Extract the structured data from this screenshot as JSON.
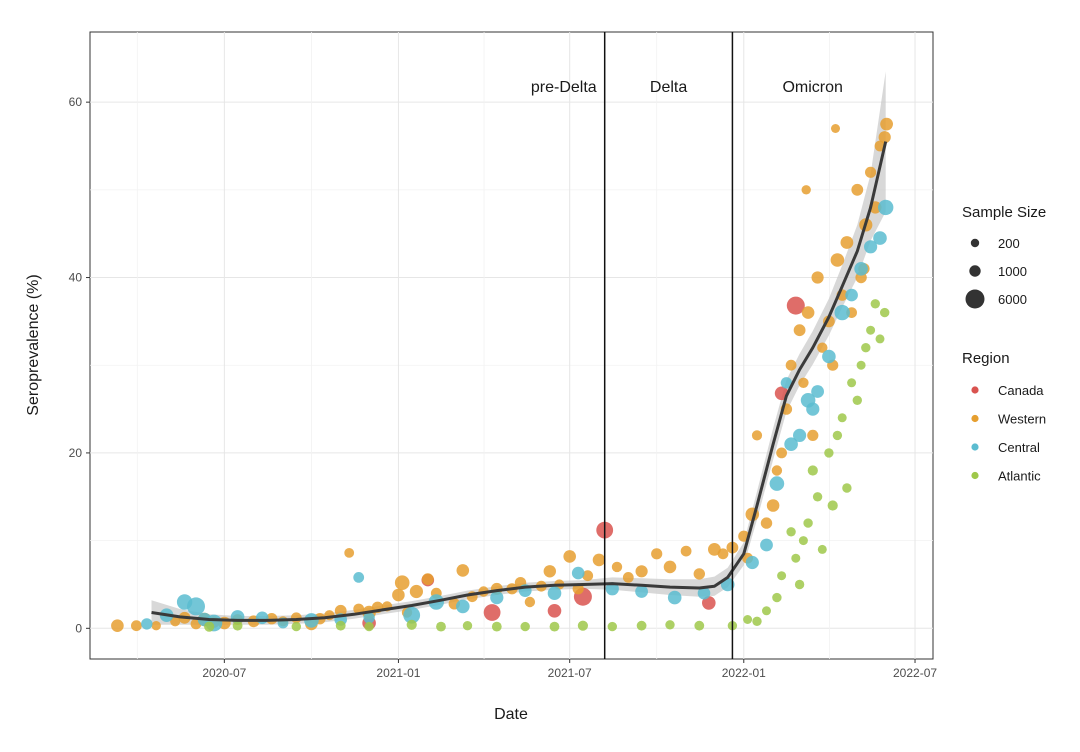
{
  "chart_data": {
    "type": "scatter",
    "xlabel": "Date",
    "ylabel": "Seroprevalence (%)",
    "xlim": [
      "2020-02-10",
      "2022-07-20"
    ],
    "ylim": [
      -3.5,
      68
    ],
    "x_ticks": [
      {
        "date": "2020-07-01",
        "label": "2020-07"
      },
      {
        "date": "2021-01-01",
        "label": "2021-01"
      },
      {
        "date": "2021-07-01",
        "label": "2021-07"
      },
      {
        "date": "2022-01-01",
        "label": "2022-01"
      },
      {
        "date": "2022-07-01",
        "label": "2022-07"
      }
    ],
    "y_ticks": [
      0,
      20,
      40,
      60
    ],
    "grid": true,
    "periods": [
      {
        "label": "pre-Delta",
        "start": "2020-02-10",
        "end": "2021-08-07"
      },
      {
        "label": "Delta",
        "start": "2021-08-07",
        "end": "2021-12-20"
      },
      {
        "label": "Omicron",
        "start": "2021-12-20",
        "end": "2022-07-20"
      }
    ],
    "period_boundaries": [
      "2021-08-07",
      "2021-12-20"
    ],
    "size_legend": {
      "title": "Sample Size",
      "entries": [
        {
          "label": "200",
          "value": 200
        },
        {
          "label": "1000",
          "value": 1000
        },
        {
          "label": "6000",
          "value": 6000
        }
      ]
    },
    "color_legend": {
      "title": "Region",
      "entries": [
        {
          "label": "Canada",
          "color": "#d9534f"
        },
        {
          "label": "Western",
          "color": "#e69f30"
        },
        {
          "label": "Central",
          "color": "#5bbcd0"
        },
        {
          "label": "Atlantic",
          "color": "#9fc84a"
        }
      ]
    },
    "legend_position": "right",
    "smooth_fit": {
      "name": "trend",
      "x": [
        "2020-04-15",
        "2020-05-15",
        "2020-06-15",
        "2020-07-15",
        "2020-08-15",
        "2020-09-15",
        "2020-10-15",
        "2020-11-15",
        "2020-12-15",
        "2021-01-15",
        "2021-02-15",
        "2021-03-15",
        "2021-04-15",
        "2021-05-15",
        "2021-06-15",
        "2021-07-15",
        "2021-08-15",
        "2021-09-15",
        "2021-10-15",
        "2021-11-15",
        "2021-12-01",
        "2021-12-15",
        "2022-01-01",
        "2022-01-15",
        "2022-02-01",
        "2022-02-15",
        "2022-03-01",
        "2022-03-15",
        "2022-04-01",
        "2022-04-15",
        "2022-05-01",
        "2022-05-15",
        "2022-05-31"
      ],
      "y": [
        1.8,
        1.3,
        1.0,
        0.9,
        0.9,
        1.0,
        1.2,
        1.6,
        2.1,
        2.6,
        3.2,
        3.8,
        4.3,
        4.7,
        4.9,
        5.0,
        5.1,
        4.9,
        4.7,
        4.6,
        4.8,
        5.8,
        8.5,
        14.0,
        21.0,
        26.5,
        29.5,
        32.0,
        35.5,
        39.0,
        43.0,
        48.0,
        55.5
      ],
      "band_upper": [
        3.2,
        2.2,
        1.6,
        1.4,
        1.4,
        1.5,
        1.7,
        2.1,
        2.6,
        3.1,
        3.7,
        4.3,
        4.8,
        5.2,
        5.4,
        5.5,
        5.8,
        5.7,
        5.6,
        5.6,
        5.9,
        6.9,
        9.8,
        15.6,
        22.8,
        28.3,
        31.3,
        33.9,
        37.6,
        41.4,
        46.0,
        51.8,
        63.5
      ],
      "band_lower": [
        0.4,
        0.4,
        0.4,
        0.4,
        0.4,
        0.5,
        0.7,
        1.1,
        1.6,
        2.1,
        2.7,
        3.3,
        3.8,
        4.2,
        4.4,
        4.5,
        4.4,
        4.1,
        3.8,
        3.6,
        3.7,
        4.7,
        7.2,
        12.4,
        19.2,
        24.7,
        27.7,
        30.1,
        33.4,
        36.6,
        40.0,
        44.2,
        47.5
      ]
    },
    "series": [
      {
        "name": "Canada",
        "x": [
          "2020-12-01",
          "2021-02-01",
          "2021-04-10",
          "2021-06-15",
          "2021-07-15",
          "2021-08-07",
          "2021-11-25",
          "2022-02-10",
          "2022-02-25"
        ],
        "y": [
          0.6,
          5.5,
          1.8,
          2.0,
          3.6,
          11.2,
          2.9,
          26.8,
          36.8
        ],
        "n": [
          2000,
          1500,
          4000,
          2000,
          5000,
          4000,
          2000,
          2000,
          5000
        ]
      },
      {
        "name": "Western",
        "x": [
          "2020-03-10",
          "2020-03-30",
          "2020-04-20",
          "2020-05-10",
          "2020-05-20",
          "2020-06-01",
          "2020-06-10",
          "2020-06-20",
          "2020-07-01",
          "2020-07-15",
          "2020-08-01",
          "2020-08-20",
          "2020-09-01",
          "2020-09-15",
          "2020-10-01",
          "2020-10-10",
          "2020-10-20",
          "2020-11-01",
          "2020-11-10",
          "2020-11-20",
          "2020-12-01",
          "2020-12-10",
          "2020-12-20",
          "2021-01-01",
          "2021-01-05",
          "2021-01-10",
          "2021-01-20",
          "2021-02-01",
          "2021-02-10",
          "2021-03-01",
          "2021-03-10",
          "2021-03-20",
          "2021-04-01",
          "2021-04-15",
          "2021-05-01",
          "2021-05-10",
          "2021-05-20",
          "2021-06-01",
          "2021-06-10",
          "2021-06-20",
          "2021-07-01",
          "2021-07-10",
          "2021-07-20",
          "2021-08-01",
          "2021-08-20",
          "2021-09-01",
          "2021-09-15",
          "2021-10-01",
          "2021-10-15",
          "2021-11-01",
          "2021-11-15",
          "2021-12-01",
          "2021-12-10",
          "2021-12-20",
          "2022-01-01",
          "2022-01-10",
          "2022-01-15",
          "2022-01-25",
          "2022-02-01",
          "2022-02-10",
          "2022-02-15",
          "2022-02-20",
          "2022-03-01",
          "2022-03-05",
          "2022-03-10",
          "2022-03-15",
          "2022-03-20",
          "2022-03-25",
          "2022-04-01",
          "2022-04-05",
          "2022-04-10",
          "2022-04-15",
          "2022-04-20",
          "2022-04-25",
          "2022-05-01",
          "2022-05-05",
          "2022-05-10",
          "2022-05-15",
          "2022-05-20",
          "2022-05-25",
          "2022-05-30",
          "2022-06-01",
          "2022-01-05",
          "2022-02-05",
          "2022-03-08",
          "2022-04-08",
          "2022-05-08"
        ],
        "y": [
          0.3,
          0.3,
          0.3,
          0.8,
          1.2,
          0.5,
          1.0,
          0.7,
          0.6,
          1.0,
          0.8,
          1.1,
          0.8,
          1.2,
          0.5,
          1.1,
          1.5,
          2.0,
          8.6,
          2.2,
          1.8,
          2.4,
          2.5,
          3.8,
          5.2,
          1.8,
          4.2,
          5.6,
          4.0,
          2.8,
          6.6,
          3.6,
          4.2,
          4.5,
          4.5,
          5.2,
          3.0,
          4.8,
          6.5,
          5.0,
          8.2,
          4.5,
          6.0,
          7.8,
          7.0,
          5.8,
          6.5,
          8.5,
          7.0,
          8.8,
          6.2,
          9.0,
          8.5,
          9.2,
          10.5,
          13.0,
          22.0,
          12.0,
          14.0,
          20.0,
          25.0,
          30.0,
          34.0,
          28.0,
          36.0,
          22.0,
          40.0,
          32.0,
          35.0,
          30.0,
          42.0,
          38.0,
          44.0,
          36.0,
          50.0,
          40.0,
          46.0,
          52.0,
          48.0,
          55.0,
          56.0,
          57.5,
          8.0,
          18.0,
          50.0,
          57.0,
          41.0
        ],
        "n": [
          1500,
          800,
          400,
          600,
          1200,
          800,
          2000,
          1000,
          1500,
          800,
          1200,
          1000,
          600,
          800,
          1500,
          1000,
          600,
          1200,
          500,
          800,
          2000,
          1000,
          600,
          1500,
          2500,
          700,
          1800,
          1200,
          800,
          1000,
          1500,
          800,
          700,
          1200,
          900,
          1000,
          700,
          800,
          1400,
          600,
          1500,
          900,
          800,
          1500,
          700,
          800,
          1300,
          900,
          1500,
          800,
          1000,
          1600,
          800,
          1200,
          900,
          2000,
          600,
          1000,
          1500,
          800,
          1000,
          800,
          1200,
          700,
          1500,
          900,
          1300,
          700,
          1200,
          900,
          2000,
          1000,
          1600,
          800,
          1200,
          1000,
          1800,
          900,
          1400,
          800,
          1300,
          1600,
          800,
          700,
          400,
          300,
          1000
        ]
      },
      {
        "name": "Central",
        "x": [
          "2020-04-10",
          "2020-05-01",
          "2020-05-20",
          "2020-06-01",
          "2020-06-10",
          "2020-06-20",
          "2020-07-15",
          "2020-08-10",
          "2020-09-01",
          "2020-10-01",
          "2020-11-01",
          "2020-11-20",
          "2020-12-01",
          "2021-01-15",
          "2021-02-10",
          "2021-03-10",
          "2021-04-15",
          "2021-05-15",
          "2021-06-15",
          "2021-07-10",
          "2021-08-15",
          "2021-09-15",
          "2021-10-20",
          "2021-11-20",
          "2021-12-15",
          "2022-01-10",
          "2022-01-25",
          "2022-02-05",
          "2022-02-15",
          "2022-02-20",
          "2022-03-01",
          "2022-03-10",
          "2022-03-15",
          "2022-03-20",
          "2022-04-01",
          "2022-04-15",
          "2022-04-25",
          "2022-05-05",
          "2022-05-15",
          "2022-05-25",
          "2022-05-31"
        ],
        "y": [
          0.5,
          1.5,
          3.0,
          2.5,
          1.0,
          0.6,
          1.3,
          1.2,
          0.6,
          0.9,
          1.0,
          5.8,
          1.2,
          1.5,
          3.0,
          2.5,
          3.5,
          4.3,
          4.0,
          6.3,
          4.5,
          4.2,
          3.5,
          4.0,
          5.0,
          7.5,
          9.5,
          16.5,
          28.0,
          21.0,
          22.0,
          26.0,
          25.0,
          27.0,
          31.0,
          36.0,
          38.0,
          41.0,
          43.5,
          44.5,
          48.0
        ],
        "n": [
          1000,
          2000,
          3000,
          5000,
          2000,
          4000,
          2000,
          1500,
          800,
          2500,
          1500,
          800,
          1000,
          4000,
          3000,
          2000,
          1800,
          1600,
          2000,
          1500,
          1800,
          1600,
          2000,
          1500,
          2000,
          1800,
          1600,
          2500,
          1000,
          2000,
          1800,
          2500,
          1800,
          1600,
          2000,
          3000,
          1500,
          2000,
          1800,
          2000,
          3000
        ]
      },
      {
        "name": "Atlantic",
        "x": [
          "2020-06-15",
          "2020-07-15",
          "2020-09-15",
          "2020-11-01",
          "2020-12-01",
          "2021-01-15",
          "2021-02-15",
          "2021-03-15",
          "2021-04-15",
          "2021-05-15",
          "2021-06-15",
          "2021-07-15",
          "2021-08-15",
          "2021-09-15",
          "2021-10-15",
          "2021-11-15",
          "2021-12-20",
          "2022-01-05",
          "2022-01-15",
          "2022-01-25",
          "2022-02-05",
          "2022-02-10",
          "2022-02-20",
          "2022-02-25",
          "2022-03-01",
          "2022-03-05",
          "2022-03-10",
          "2022-03-15",
          "2022-03-20",
          "2022-03-25",
          "2022-04-01",
          "2022-04-05",
          "2022-04-10",
          "2022-04-15",
          "2022-04-20",
          "2022-04-25",
          "2022-05-01",
          "2022-05-05",
          "2022-05-10",
          "2022-05-15",
          "2022-05-20",
          "2022-05-25",
          "2022-05-30"
        ],
        "y": [
          0.2,
          0.3,
          0.2,
          0.3,
          0.2,
          0.4,
          0.2,
          0.3,
          0.2,
          0.2,
          0.2,
          0.3,
          0.2,
          0.3,
          0.4,
          0.3,
          0.3,
          1.0,
          0.8,
          2.0,
          3.5,
          6.0,
          11.0,
          8.0,
          5.0,
          10.0,
          12.0,
          18.0,
          15.0,
          9.0,
          20.0,
          14.0,
          22.0,
          24.0,
          16.0,
          28.0,
          26.0,
          30.0,
          32.0,
          34.0,
          37.0,
          33.0,
          36.0
        ],
        "n": [
          600,
          500,
          400,
          500,
          400,
          600,
          500,
          400,
          500,
          400,
          500,
          600,
          400,
          500,
          400,
          500,
          400,
          300,
          400,
          300,
          400,
          300,
          400,
          300,
          400,
          300,
          400,
          600,
          400,
          300,
          400,
          600,
          400,
          300,
          400,
          300,
          400,
          300,
          400,
          300,
          400,
          300,
          400
        ]
      }
    ]
  }
}
